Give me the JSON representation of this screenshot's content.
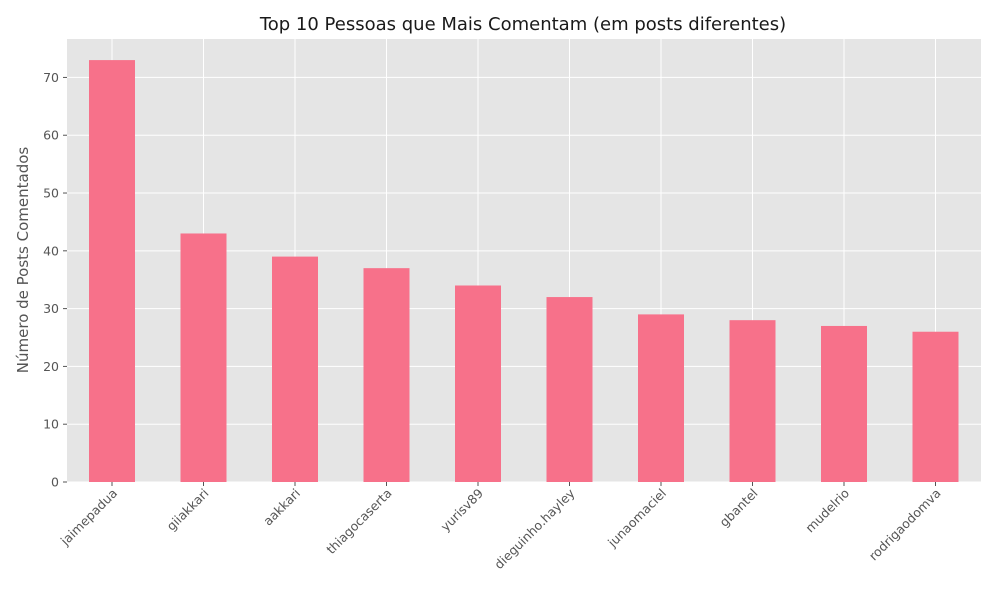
{
  "chart_data": {
    "type": "bar",
    "title": "Top 10 Pessoas que Mais Comentam (em posts diferentes)",
    "xlabel": "",
    "ylabel": "Número de Posts Comentados",
    "categories": [
      "jaimepadua",
      "giiakkari",
      "aakkari",
      "thiagocaserta",
      "yurisv89",
      "dieguinho.hayley",
      "junaomaciel",
      "gbantel",
      "mudelrio",
      "rodrigaodomva"
    ],
    "values": [
      73,
      43,
      39,
      37,
      34,
      32,
      29,
      28,
      27,
      26
    ],
    "ylim": [
      0,
      76.65
    ],
    "yticks": [
      0,
      10,
      20,
      30,
      40,
      50,
      60,
      70
    ],
    "grid": true,
    "bar_color": "#f7718a",
    "background_color": "#e5e5e5",
    "grid_color": "#ffffff"
  }
}
